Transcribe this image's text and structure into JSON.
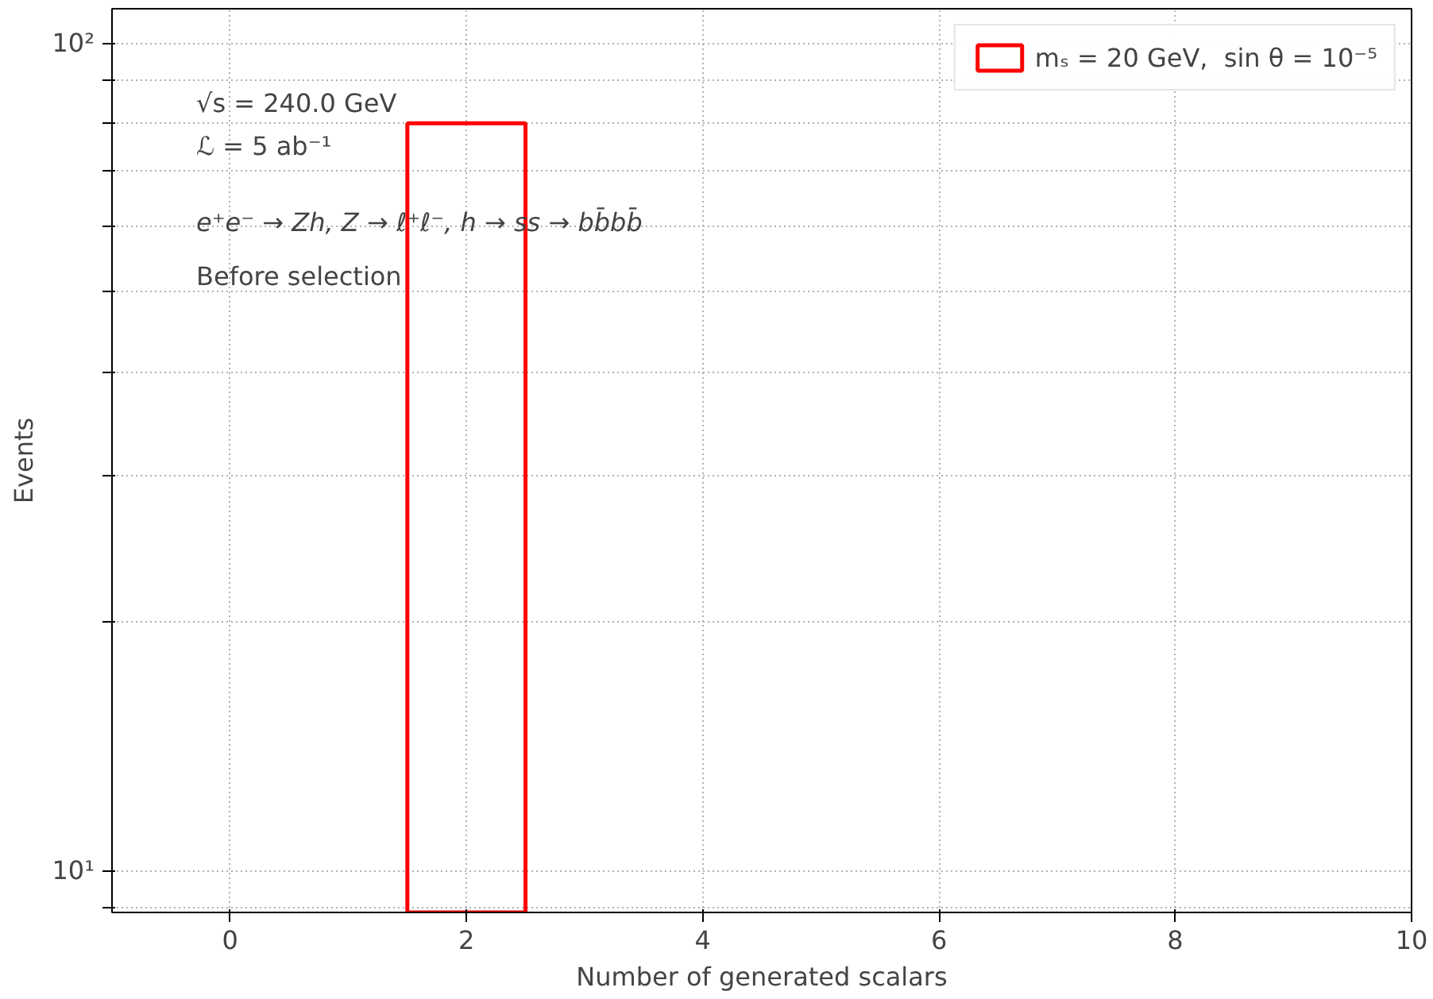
{
  "chart_data": {
    "type": "histogram",
    "xlabel": "Number of generated scalars",
    "ylabel": "Events",
    "bins": [
      1.5,
      2.5
    ],
    "series": [
      {
        "name": "mₛ = 20 GeV,  sin θ = 10⁻⁵",
        "color": "#ff0000",
        "values": [
          80
        ]
      }
    ],
    "log": "y",
    "xlim": [
      -1,
      10
    ],
    "ylim": [
      8.9,
      110
    ],
    "xticks": [
      0,
      2,
      4,
      6,
      8,
      10
    ],
    "yticks": [
      {
        "value": 9,
        "label": null
      },
      {
        "value": 10,
        "label": "10¹"
      },
      {
        "value": 20,
        "label": null
      },
      {
        "value": 30,
        "label": null
      },
      {
        "value": 40,
        "label": null
      },
      {
        "value": 50,
        "label": null
      },
      {
        "value": 60,
        "label": null
      },
      {
        "value": 70,
        "label": null
      },
      {
        "value": 80,
        "label": null
      },
      {
        "value": 90,
        "label": null
      },
      {
        "value": 100,
        "label": "10²"
      }
    ],
    "grid": true,
    "legend": "top right",
    "annotations": [
      "√s = 240.0 GeV",
      "ℒ = 5 ab⁻¹",
      "e⁺e⁻ → Zh,  Z → ℓ⁺ℓ⁻,  h → ss → bb̄bb̄",
      "Before selection"
    ]
  }
}
